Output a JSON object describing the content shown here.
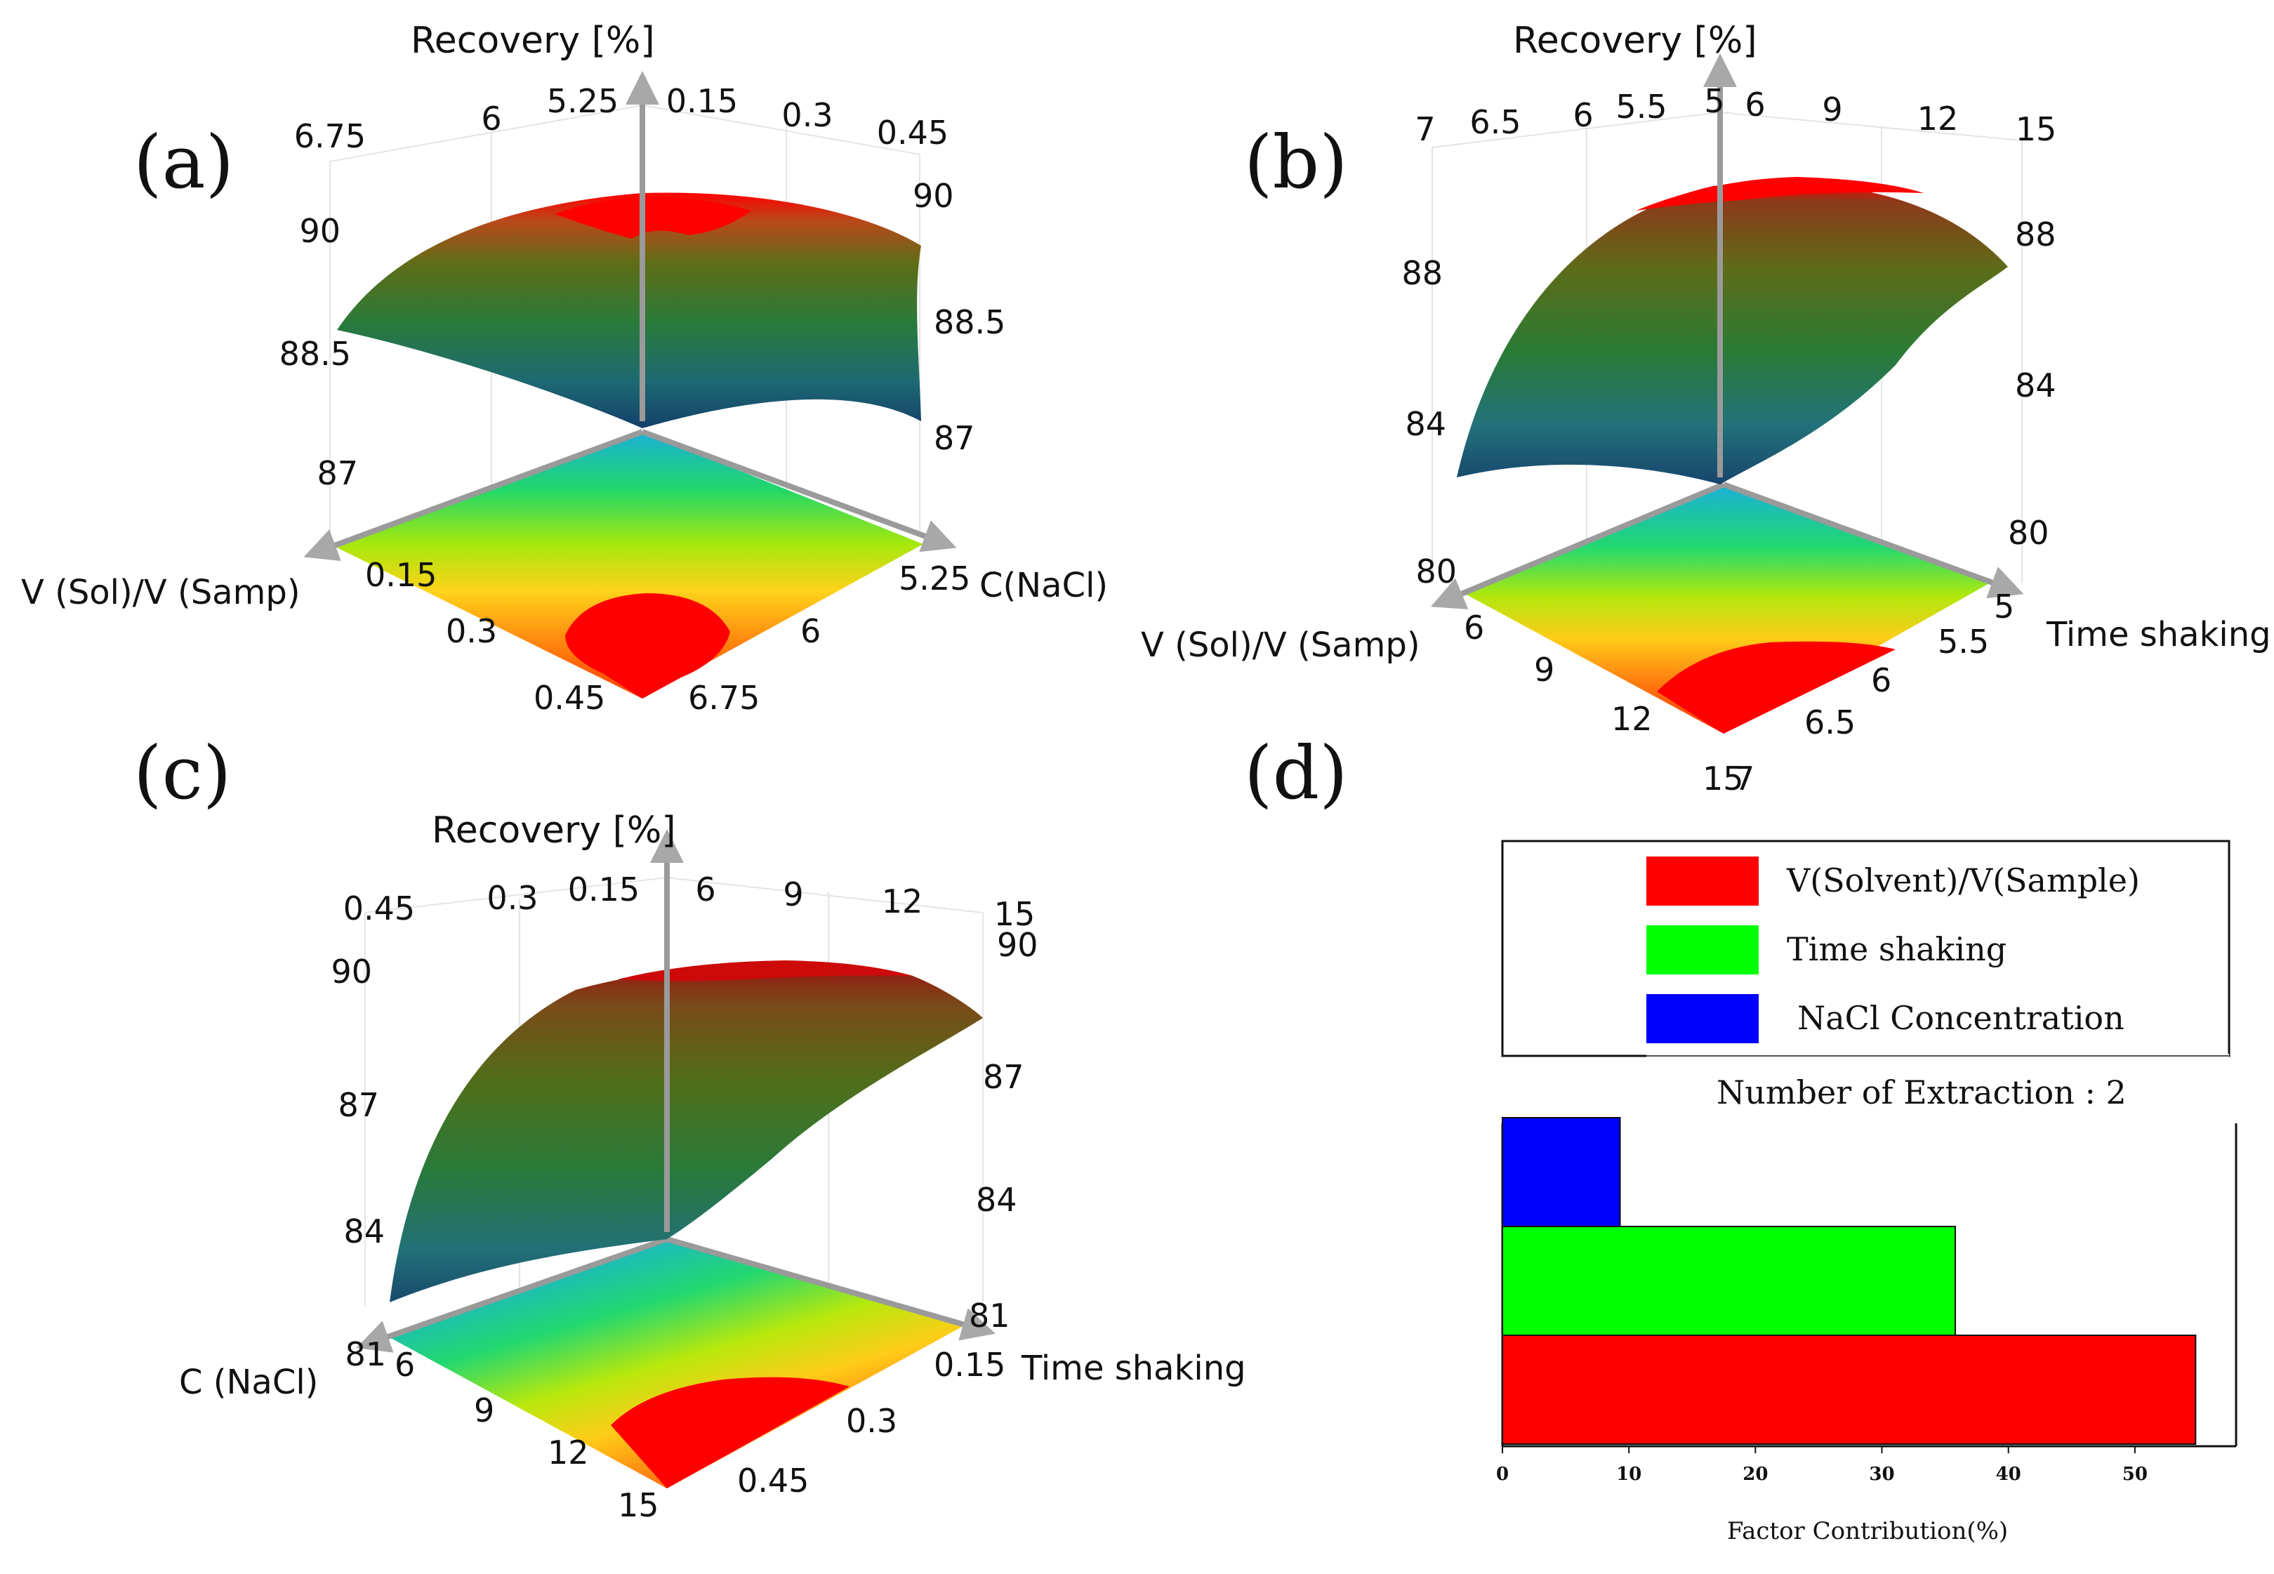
{
  "panels": {
    "a": {
      "letter": "(a)",
      "z_title": "Recovery [%]",
      "x_title": "V (Sol)/V (Samp)",
      "y_title": "C(NaCl)",
      "back_left_ticks": [
        "6.75",
        "6",
        "5.25"
      ],
      "back_right_ticks": [
        "0.15",
        "0.3",
        "0.45"
      ],
      "z_left_ticks": [
        "90",
        "88.5",
        "87"
      ],
      "z_right_ticks": [
        "90",
        "88.5",
        "87"
      ],
      "floor_left_ticks": [
        "0.15",
        "0.3",
        "0.45"
      ],
      "floor_right_ticks": [
        "5.25",
        "6",
        "6.75"
      ]
    },
    "b": {
      "letter": "(b)",
      "z_title": "Recovery [%]",
      "x_title": "V (Sol)/V (Samp)",
      "y_title": "Time shaking",
      "back_left_ticks": [
        "7",
        "6.5",
        "6",
        "5.5",
        "5"
      ],
      "back_right_ticks": [
        "6",
        "9",
        "12",
        "15"
      ],
      "z_left_ticks": [
        "88",
        "84",
        "80"
      ],
      "z_right_ticks": [
        "88",
        "84",
        "80"
      ],
      "floor_left_ticks": [
        "6",
        "9",
        "12",
        "15"
      ],
      "floor_right_ticks": [
        "5",
        "5.5",
        "6",
        "6.5",
        "7"
      ]
    },
    "c": {
      "letter": "(c)",
      "z_title": "Recovery [%]",
      "x_title": "C (NaCl)",
      "y_title": "Time shaking",
      "back_left_ticks": [
        "0.45",
        "0.3",
        "0.15"
      ],
      "back_right_ticks": [
        "6",
        "9",
        "12",
        "15"
      ],
      "z_left_ticks": [
        "90",
        "87",
        "84",
        "81"
      ],
      "z_right_ticks": [
        "90",
        "87",
        "84",
        "81"
      ],
      "floor_left_ticks": [
        "6",
        "9",
        "12",
        "15"
      ],
      "floor_right_ticks": [
        "0.15",
        "0.3",
        "0.45"
      ]
    },
    "d": {
      "letter": "(d)",
      "subtitle": "Number of Extraction : 2"
    }
  },
  "chart_data": [
    {
      "type": "bar",
      "orientation": "horizontal",
      "title": "Number of Extraction : 2",
      "xlabel": "Factor Contribution(%)",
      "ylabel": "",
      "xlim": [
        0,
        58
      ],
      "xticks": [
        "0",
        "10",
        "20",
        "30",
        "40",
        "50"
      ],
      "categories": [
        "NaCl Concentration",
        "Time shaking",
        "V(Solvent)/V(Sample)"
      ],
      "values": [
        9.3,
        35.8,
        54.8
      ],
      "colors": [
        "#0000ff",
        "#00ff00",
        "#ff0000"
      ],
      "legend": [
        {
          "label": "V(Solvent)/V(Sample)",
          "color": "#ff0000"
        },
        {
          "label": "Time shaking",
          "color": "#00ff00"
        },
        {
          "label": "NaCl Concentration",
          "color": "#0000ff"
        }
      ],
      "legend_position": "top"
    }
  ]
}
